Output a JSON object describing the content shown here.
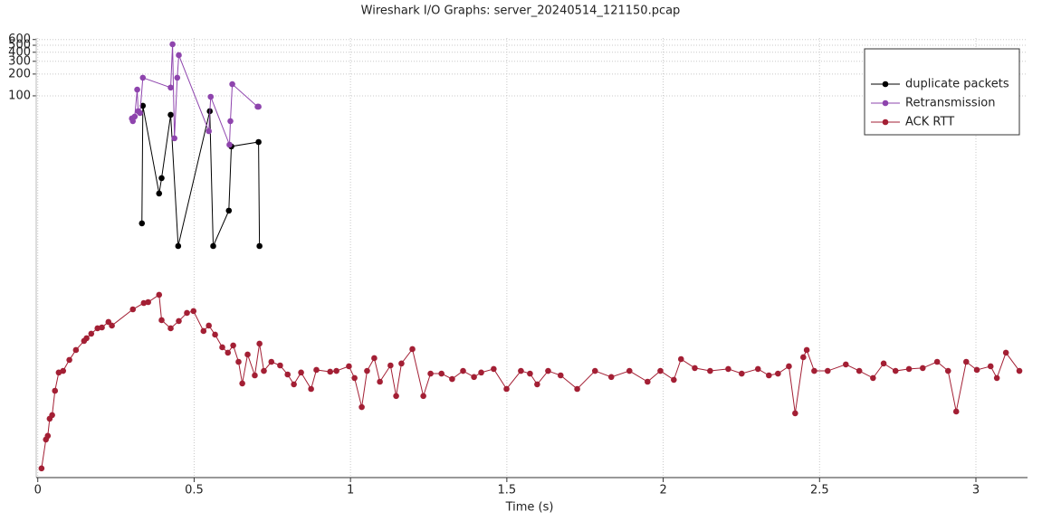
{
  "chart_data": {
    "type": "line",
    "title": "Wireshark I/O Graphs: server_20240514_121150.pcap",
    "xlabel": "Time (s)",
    "xlim": [
      -0.005,
      3.165
    ],
    "xticks": [
      0,
      0.5,
      1,
      1.5,
      2,
      2.5,
      3
    ],
    "ylim": [
      0.00053,
      630
    ],
    "yticks": [
      100,
      200,
      300,
      400,
      500,
      600
    ],
    "log_y": true,
    "grid": true,
    "legend": "upper right",
    "series": [
      {
        "name": "duplicate packets",
        "color": "#000000",
        "x": [
          0.333,
          0.336,
          0.388,
          0.396,
          0.425,
          0.449,
          0.55,
          0.561,
          0.611,
          0.619,
          0.706,
          0.709
        ],
        "values": [
          1.73,
          72.9,
          4.47,
          7.29,
          54.6,
          0.84,
          61.3,
          0.84,
          2.59,
          20,
          23,
          0.84
        ]
      },
      {
        "name": "Retransmission",
        "color": "#8e44ad",
        "x": [
          0.301,
          0.304,
          0.31,
          0.318,
          0.321,
          0.327,
          0.336,
          0.425,
          0.431,
          0.437,
          0.446,
          0.451,
          0.547,
          0.553,
          0.613,
          0.616,
          0.622,
          0.703,
          0.706
        ],
        "values": [
          48.7,
          44.7,
          51.6,
          122,
          61.3,
          57.9,
          178,
          130,
          516,
          25.9,
          178,
          365,
          32.5,
          97,
          21.1,
          44.7,
          145,
          70.8,
          70.8
        ]
      },
      {
        "name": "ACK RTT",
        "color": "#a31f34",
        "x": [
          0.012,
          0.026,
          0.032,
          0.038,
          0.046,
          0.055,
          0.067,
          0.081,
          0.101,
          0.122,
          0.148,
          0.156,
          0.171,
          0.191,
          0.205,
          0.226,
          0.237,
          0.304,
          0.339,
          0.353,
          0.388,
          0.396,
          0.425,
          0.451,
          0.477,
          0.498,
          0.53,
          0.547,
          0.567,
          0.59,
          0.608,
          0.625,
          0.642,
          0.654,
          0.671,
          0.694,
          0.709,
          0.723,
          0.747,
          0.775,
          0.799,
          0.819,
          0.842,
          0.874,
          0.891,
          0.935,
          0.955,
          0.995,
          1.013,
          1.036,
          1.053,
          1.076,
          1.094,
          1.128,
          1.146,
          1.163,
          1.198,
          1.233,
          1.256,
          1.291,
          1.325,
          1.36,
          1.395,
          1.418,
          1.458,
          1.499,
          1.545,
          1.574,
          1.597,
          1.632,
          1.672,
          1.725,
          1.782,
          1.834,
          1.892,
          1.95,
          1.991,
          2.034,
          2.057,
          2.101,
          2.15,
          2.208,
          2.251,
          2.303,
          2.338,
          2.367,
          2.402,
          2.422,
          2.448,
          2.459,
          2.483,
          2.526,
          2.584,
          2.627,
          2.671,
          2.705,
          2.743,
          2.786,
          2.83,
          2.876,
          2.911,
          2.937,
          2.969,
          3.003,
          3.047,
          3.067,
          3.096,
          3.139
        ],
        "values": [
          0.00071,
          0.00178,
          0.002,
          0.00345,
          0.00387,
          0.0084,
          0.015,
          0.0158,
          0.0224,
          0.0307,
          0.041,
          0.0447,
          0.0516,
          0.0613,
          0.063,
          0.075,
          0.0668,
          0.112,
          0.137,
          0.141,
          0.178,
          0.0794,
          0.0613,
          0.0772,
          0.1,
          0.106,
          0.0562,
          0.0668,
          0.0501,
          0.0335,
          0.0282,
          0.0355,
          0.0211,
          0.0106,
          0.0266,
          0.0137,
          0.0376,
          0.0158,
          0.0211,
          0.0188,
          0.0141,
          0.0103,
          0.015,
          0.0089,
          0.0163,
          0.0154,
          0.0158,
          0.0183,
          0.0126,
          0.005,
          0.0158,
          0.0237,
          0.0112,
          0.0188,
          0.0071,
          0.02,
          0.0316,
          0.0071,
          0.0145,
          0.0145,
          0.0122,
          0.0158,
          0.013,
          0.015,
          0.0168,
          0.0089,
          0.0158,
          0.0145,
          0.0103,
          0.0158,
          0.0137,
          0.0089,
          0.0158,
          0.013,
          0.0158,
          0.0112,
          0.0158,
          0.0119,
          0.023,
          0.0173,
          0.0158,
          0.0168,
          0.0145,
          0.0168,
          0.0137,
          0.0145,
          0.0183,
          0.0041,
          0.0244,
          0.0307,
          0.0158,
          0.0158,
          0.0194,
          0.0158,
          0.0126,
          0.02,
          0.0158,
          0.0168,
          0.0173,
          0.0211,
          0.0158,
          0.00434,
          0.0211,
          0.0163,
          0.0183,
          0.0126,
          0.0282,
          0.0158
        ]
      }
    ]
  }
}
